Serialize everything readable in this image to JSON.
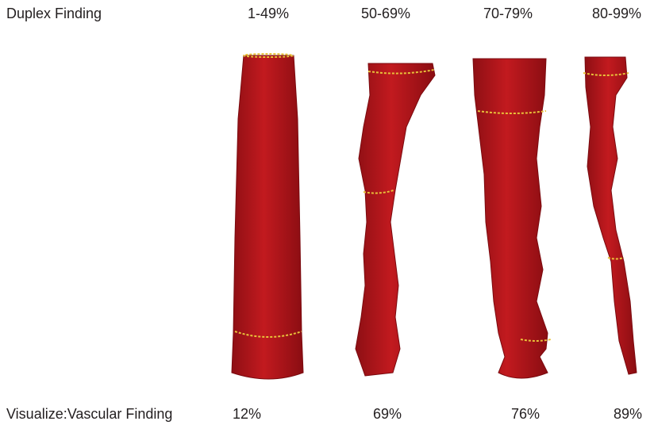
{
  "header": {
    "label": "Duplex Finding",
    "columns": [
      "1-49%",
      "50-69%",
      "70-79%",
      "80-99%"
    ]
  },
  "footer": {
    "label": "Visualize:Vascular Finding",
    "values": [
      "12%",
      "69%",
      "76%",
      "89%"
    ]
  }
}
